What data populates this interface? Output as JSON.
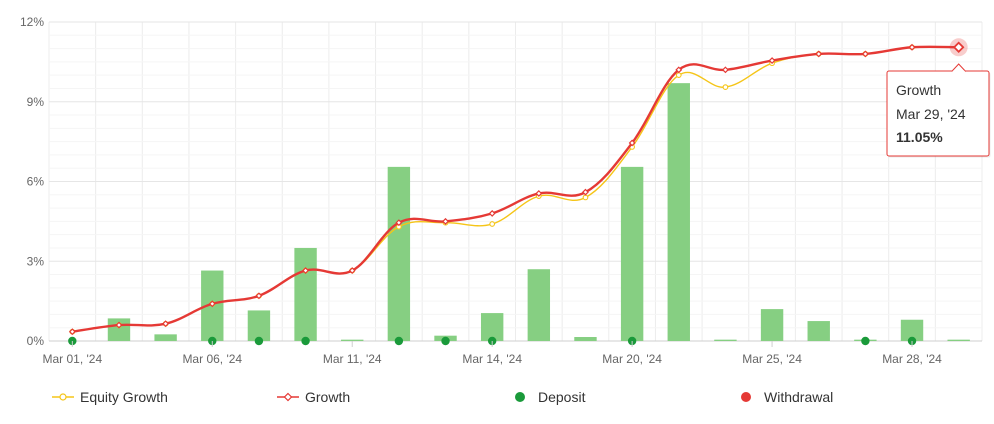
{
  "chart_data": {
    "type": "bar+line",
    "y_ticks": [
      "0%",
      "3%",
      "6%",
      "9%",
      "12%"
    ],
    "ylim": [
      0,
      12
    ],
    "x_tick_labels": [
      {
        "index": 0,
        "label": "Mar 01, '24"
      },
      {
        "index": 3,
        "label": "Mar 06, '24"
      },
      {
        "index": 6,
        "label": "Mar 11, '24"
      },
      {
        "index": 9,
        "label": "Mar 14, '24"
      },
      {
        "index": 12,
        "label": "Mar 20, '24"
      },
      {
        "index": 15,
        "label": "Mar 25, '24"
      },
      {
        "index": 18,
        "label": "Mar 28, '24"
      }
    ],
    "point_count": 20,
    "bars": [
      0,
      0.85,
      0.25,
      2.65,
      1.15,
      3.5,
      0.05,
      6.55,
      0.2,
      1.05,
      2.7,
      0.15,
      6.55,
      9.7,
      0.05,
      1.2,
      0.75,
      0.05,
      0.8,
      0.05
    ],
    "series": [
      {
        "name": "Equity Growth",
        "color": "#f5c518",
        "values": [
          0.35,
          0.6,
          0.65,
          1.4,
          1.7,
          2.65,
          2.65,
          4.3,
          4.45,
          4.4,
          5.45,
          5.4,
          7.3,
          10.0,
          9.55,
          10.45,
          10.8,
          10.8,
          11.05,
          11.05
        ]
      },
      {
        "name": "Growth",
        "color": "#e53935",
        "values": [
          0.35,
          0.6,
          0.65,
          1.4,
          1.7,
          2.65,
          2.65,
          4.45,
          4.5,
          4.8,
          5.55,
          5.6,
          7.45,
          10.2,
          10.2,
          10.55,
          10.8,
          10.8,
          11.05,
          11.05
        ]
      }
    ],
    "deposit_indices": [
      0,
      3,
      4,
      5,
      7,
      8,
      9,
      12,
      17,
      18
    ],
    "bar_color": "#86cf82",
    "deposit_color": "#1a9a3a",
    "withdrawal_color": "#e53935",
    "grid": true,
    "legend": {
      "placement": "bottom",
      "items": [
        {
          "label": "Equity Growth",
          "color": "#f5c518",
          "marker": "line-hollow-circle"
        },
        {
          "label": "Growth",
          "color": "#e53935",
          "marker": "line-hollow-diamond"
        },
        {
          "label": "Deposit",
          "color": "#1a9a3a",
          "marker": "dot"
        },
        {
          "label": "Withdrawal",
          "color": "#e53935",
          "marker": "dot"
        }
      ]
    },
    "tooltip": {
      "series": "Growth",
      "date": "Mar 29, '24",
      "value": "11.05%",
      "point_index": 19
    }
  }
}
